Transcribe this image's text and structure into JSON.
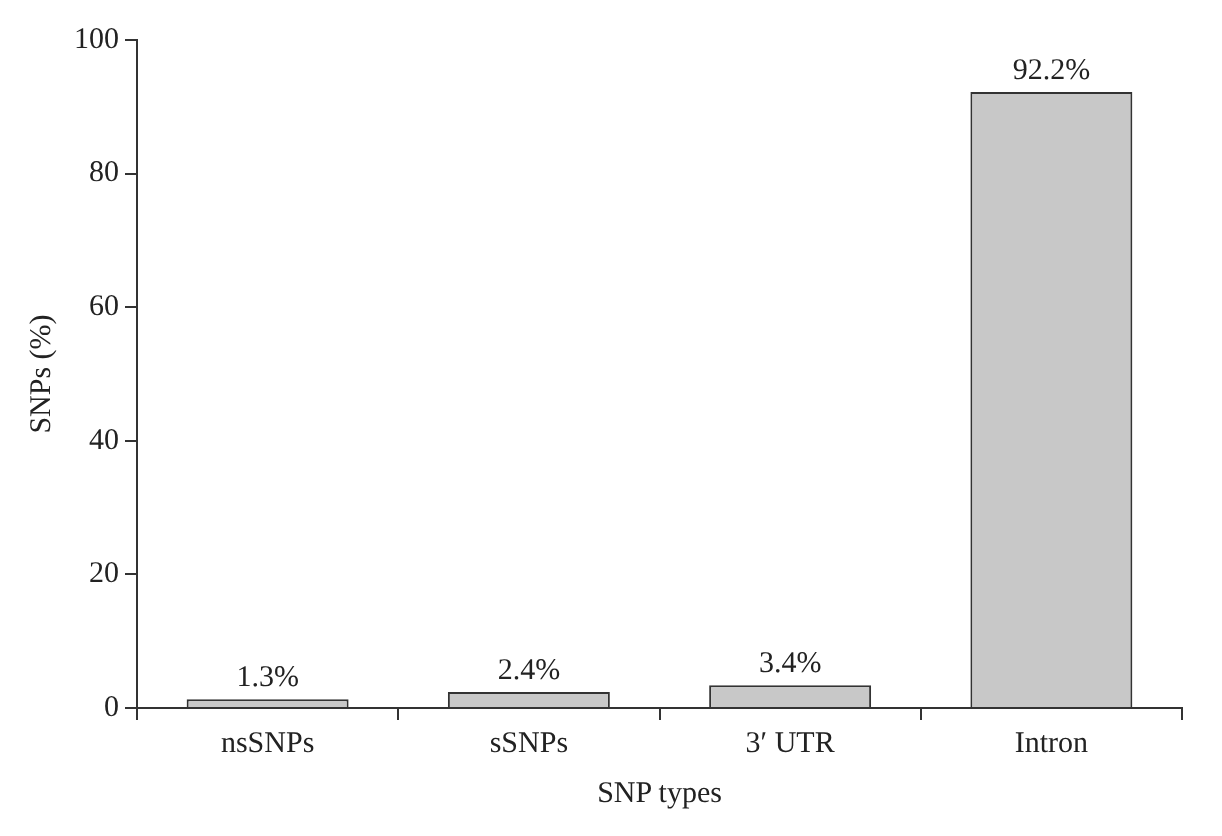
{
  "chart_data": {
    "type": "bar",
    "xlabel": "SNP types",
    "ylabel": "SNPs (%)",
    "categories": [
      "nsSNPs",
      "sSNPs",
      "3′ UTR",
      "Intron"
    ],
    "values": [
      1.3,
      2.4,
      3.4,
      92.2
    ],
    "value_labels": [
      "1.3%",
      "2.4%",
      "3.4%",
      "92.2%"
    ],
    "color": "#c8c8c8",
    "ylim": [
      0,
      100
    ],
    "yticks": [
      0,
      20,
      40,
      60,
      80,
      100
    ],
    "grid": false,
    "legend": false
  }
}
